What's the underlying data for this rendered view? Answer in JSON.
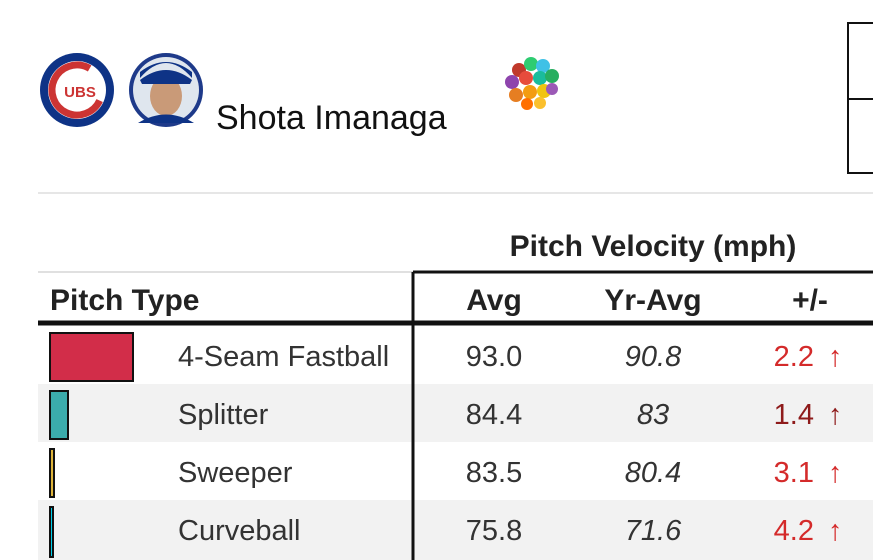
{
  "header": {
    "logo_text": "UBS",
    "player_name": "Shota Imanaga"
  },
  "table": {
    "group_header": "Pitch Velocity (mph)",
    "columns": [
      "Pitch Type",
      "Avg",
      "Yr-Avg",
      "+/-"
    ],
    "rows": [
      {
        "pitch": "4-Seam Fastball",
        "avg": "93.0",
        "yr_avg": "90.8",
        "diff": "2.2",
        "arrow": "↑"
      },
      {
        "pitch": "Splitter",
        "avg": "84.4",
        "yr_avg": "83",
        "diff": "1.4",
        "arrow": "↑"
      },
      {
        "pitch": "Sweeper",
        "avg": "83.5",
        "yr_avg": "80.4",
        "diff": "3.1",
        "arrow": "↑"
      },
      {
        "pitch": "Curveball",
        "avg": "75.8",
        "yr_avg": "71.6",
        "diff": "4.2",
        "arrow": "↑"
      }
    ]
  }
}
